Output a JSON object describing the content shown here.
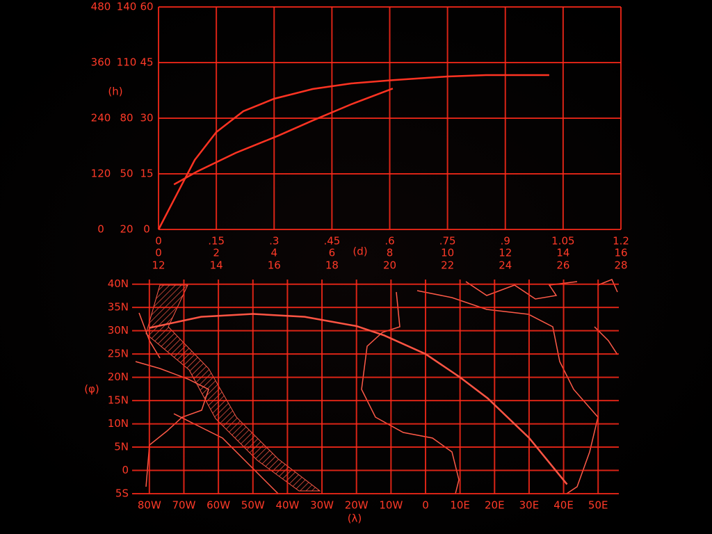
{
  "chart_data": [
    {
      "type": "line",
      "xlabel": "(d)",
      "ylabel": "(h)",
      "grid": true,
      "color": "#ff3322",
      "xlim": [
        0,
        1.2
      ],
      "xticks": [
        0,
        {
          "value": 0.15,
          "label": ".15"
        },
        {
          "value": 0.3,
          "label": ".3"
        },
        {
          "value": 0.45,
          "label": ".45"
        },
        {
          "value": 0.6,
          "label": ".6"
        },
        {
          "value": 0.75,
          "label": ".75"
        },
        {
          "value": 0.9,
          "label": ".9"
        },
        1.05,
        1.2
      ],
      "x2lim": [
        0,
        16
      ],
      "x2ticks": [
        0,
        2,
        4,
        6,
        8,
        10,
        12,
        14,
        16
      ],
      "x3lim": [
        12,
        28
      ],
      "x3ticks": [
        12,
        14,
        16,
        18,
        20,
        22,
        24,
        26,
        28
      ],
      "ylim": [
        0,
        480
      ],
      "yticks": [
        0,
        120,
        240,
        360,
        480
      ],
      "y2lim": [
        20,
        140
      ],
      "y2ticks": [
        20,
        50,
        80,
        110,
        140
      ],
      "y3lim": [
        0,
        60
      ],
      "y3ticks": [
        0,
        15,
        30,
        45,
        60
      ],
      "series": [
        {
          "color": "#ff3322",
          "x": [
            0,
            0.05,
            0.094,
            0.15,
            0.22,
            0.3,
            0.4,
            0.5,
            0.608,
            0.75,
            0.85,
            1.014
          ],
          "values": [
            0,
            80,
            150,
            210,
            255,
            282,
            303,
            315,
            322,
            330,
            333,
            333
          ]
        },
        {
          "color": "#ff3322",
          "x": [
            0.04,
            0.1,
            0.2,
            0.31,
            0.4,
            0.5,
            0.608
          ],
          "values": [
            97,
            125,
            165,
            202,
            235,
            270,
            304
          ]
        }
      ]
    },
    {
      "type": "line",
      "xlabel": "(λ)",
      "ylabel": "(φ)",
      "grid": true,
      "color": "#ff3322",
      "xlim": [
        -85,
        56
      ],
      "xticks": [
        {
          "value": -80,
          "label": "80W"
        },
        {
          "value": -70,
          "label": "70W"
        },
        {
          "value": -60,
          "label": "60W"
        },
        {
          "value": -50,
          "label": "50W"
        },
        {
          "value": -40,
          "label": "40W"
        },
        {
          "value": -30,
          "label": "30W"
        },
        {
          "value": -20,
          "label": "20W"
        },
        {
          "value": -10,
          "label": "10W"
        },
        0,
        {
          "value": 10,
          "label": "10E"
        },
        {
          "value": 20,
          "label": "20E"
        },
        {
          "value": 30,
          "label": "30E"
        },
        {
          "value": 40,
          "label": "40E"
        },
        {
          "value": 50,
          "label": "50E"
        }
      ],
      "ylim": [
        -5,
        41
      ],
      "yticks": [
        {
          "value": -5,
          "label": "5S"
        },
        0,
        {
          "value": 5,
          "label": "5N"
        },
        {
          "value": 10,
          "label": "10N"
        },
        {
          "value": 15,
          "label": "15N"
        },
        {
          "value": 20,
          "label": "20N"
        },
        {
          "value": 25,
          "label": "25N"
        },
        {
          "value": 30,
          "label": "30N"
        },
        {
          "value": 35,
          "label": "35N"
        },
        {
          "value": 40,
          "label": "40N"
        }
      ],
      "series": [
        {
          "color": "#ff5544",
          "x": [
            -80,
            -65,
            -50,
            -35,
            -20,
            -12,
            0,
            10,
            18,
            30,
            41
          ],
          "values": [
            30.6,
            33,
            33.6,
            33,
            31,
            29,
            25,
            20,
            15.5,
            7,
            -3
          ]
        }
      ]
    }
  ]
}
